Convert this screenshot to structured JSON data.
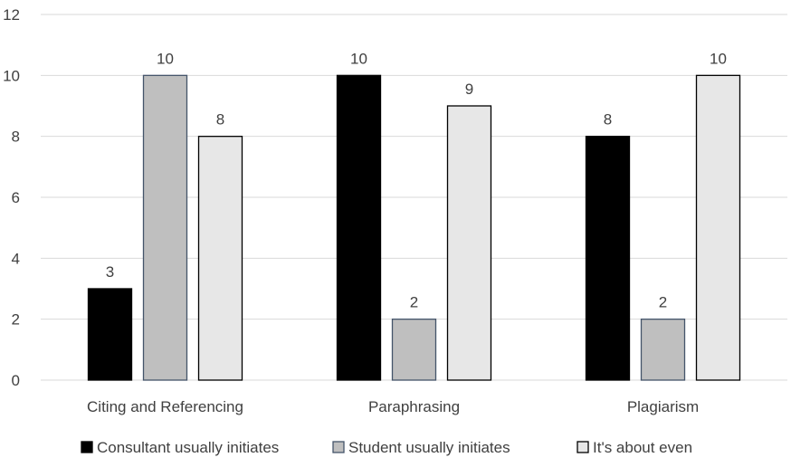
{
  "chart_data": {
    "type": "bar",
    "categories": [
      "Citing and Referencing",
      "Paraphrasing",
      "Plagiarism"
    ],
    "series": [
      {
        "name": "Consultant usually initiates",
        "values": [
          3,
          10,
          8
        ],
        "fill": "#000000",
        "stroke": "#000000"
      },
      {
        "name": "Student usually initiates",
        "values": [
          10,
          2,
          2
        ],
        "fill": "#bfbfbf",
        "stroke": "#44546a"
      },
      {
        "name": "It's about even",
        "values": [
          8,
          9,
          10
        ],
        "fill": "#e7e7e7",
        "stroke": "#000000"
      }
    ],
    "yticks": [
      "0",
      "2",
      "4",
      "6",
      "8",
      "10",
      "12"
    ],
    "ylim": [
      0,
      12
    ],
    "grid": true,
    "legend": "bottom",
    "data_labels": true
  }
}
